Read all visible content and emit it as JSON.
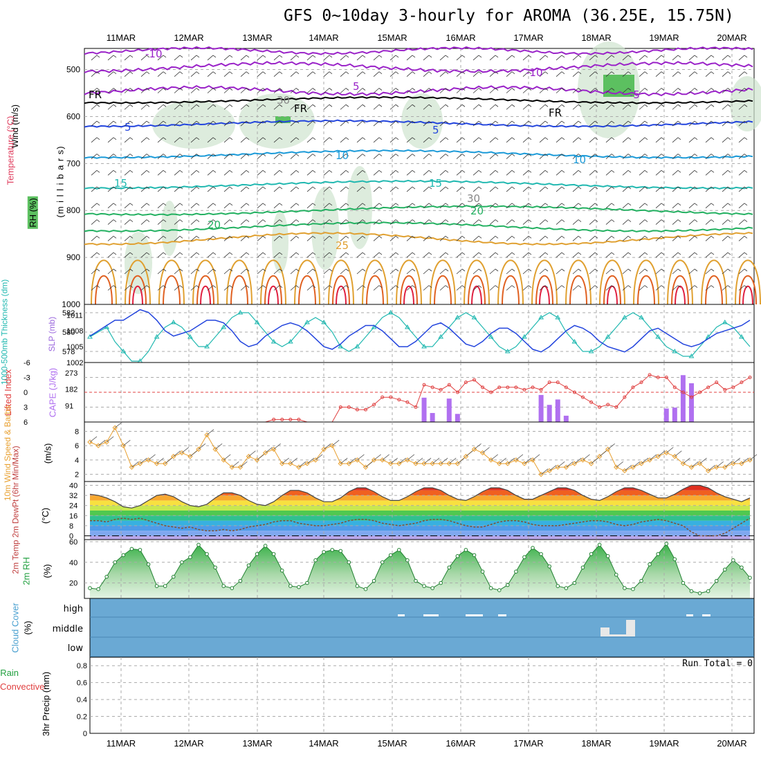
{
  "title": "GFS 0~10day 3-hourly for AROMA (36.25E, 15.75N)",
  "dates": [
    "11MAR",
    "12MAR",
    "13MAR",
    "14MAR",
    "15MAR",
    "16MAR",
    "17MAR",
    "18MAR",
    "19MAR",
    "20MAR"
  ],
  "colors": {
    "grid": "#aaaaaa",
    "purple": "#9a22c8",
    "blue": "#2244dd",
    "lightblue": "#1a9ad8",
    "teal": "#20b8b0",
    "green": "#22b060",
    "orange": "#e0a030",
    "red": "#e02040",
    "cloud_bg": "#6aa9d4",
    "rh_fill": "#5cc060",
    "cape_bar": "#b070f0",
    "li_line": "#e04040",
    "wind_line": "#e8a030",
    "temp_max": "#c02020"
  },
  "panels": {
    "upper_air": {
      "ylabel_wind": "Wind (m/s)",
      "ylabel_temp": "Temperature (°C)",
      "ylabel_rh": "RH (%)",
      "ylabel_units": "(m i l l i b a r s)",
      "yticks": [
        "500",
        "600",
        "700",
        "800",
        "900",
        "1000"
      ],
      "contour_labels": [
        "-10",
        "5",
        "-10",
        "-5",
        "FR",
        "FR",
        "FR",
        "5",
        "5",
        "10",
        "10",
        "15",
        "15",
        "20",
        "20",
        "25",
        "30",
        "30"
      ]
    },
    "slp_thickness": {
      "ylabel_left": "1000-500mb Thickness (dm)",
      "ylabel_right": "SLP (mb)",
      "yticks_left": [
        "582",
        "580",
        "578"
      ],
      "yticks_right": [
        "1011",
        "1008",
        "1005",
        "1002"
      ]
    },
    "li_cape": {
      "ylabel_left": "Lifted Index",
      "ylabel_right": "CAPE (J/kg)",
      "yticks_left": [
        "-6",
        "-3",
        "0",
        "3",
        "6"
      ],
      "yticks_right": [
        "273",
        "182",
        "91"
      ]
    },
    "wind10m": {
      "ylabel": "10m Wind Speed & Barbs",
      "units": "(m/s)",
      "yticks": [
        "8",
        "6",
        "4",
        "2"
      ]
    },
    "temp2m": {
      "ylabel": "2m Temp 2m DewPt (6hr Min/Max)",
      "units": "(°C)",
      "yticks": [
        "40",
        "32",
        "24",
        "16",
        "8",
        "0"
      ]
    },
    "rh2m": {
      "ylabel": "2m RH",
      "units": "(%)",
      "yticks": [
        "60",
        "40",
        "20"
      ]
    },
    "cloud": {
      "ylabel": "Cloud Cover",
      "units": "(%)",
      "levels": [
        "high",
        "middle",
        "low"
      ]
    },
    "precip": {
      "ylabel_total": "Total / Rain",
      "ylabel_conv": "Convective",
      "ylabel": "3hr Precip (mm)",
      "yticks": [
        "0.8",
        "0.6",
        "0.4",
        "0.2",
        "0"
      ],
      "run_total": "Run Total = 0"
    }
  },
  "chart_data": [
    {
      "type": "line",
      "title": "1000-500mb Thickness (dm)",
      "series": [
        {
          "name": "Thickness",
          "values": [
            579.5,
            580,
            580.5,
            579,
            578,
            577,
            577,
            578,
            579.5,
            580.5,
            581,
            580.5,
            579.5,
            578.5,
            578.5,
            579.5,
            580.5,
            581.5,
            582,
            582,
            581,
            580,
            579,
            578.5,
            579,
            580,
            581,
            581.5,
            581,
            580,
            578.5,
            578,
            578.5,
            579.5,
            580.5,
            581.5,
            582,
            581.5,
            580.5,
            579.5,
            578.5,
            578.5,
            579.5,
            580.5,
            581.5,
            582,
            581.5,
            580.5,
            579.5,
            578.5,
            578,
            578.5,
            579.5,
            580.5,
            581.5,
            582,
            581.5,
            580,
            579,
            578,
            578,
            578.5,
            579.5,
            580.5,
            581.5,
            582,
            581.5,
            580.5,
            579.5,
            578.5,
            578,
            577.5,
            577.5,
            578.5,
            579.5,
            580.5,
            581,
            580.5,
            579.5,
            578.5
          ]
        }
      ]
    },
    {
      "type": "line",
      "title": "SLP (mb)",
      "series": [
        {
          "name": "SLP",
          "values": [
            1007,
            1008,
            1009,
            1010,
            1010,
            1011,
            1012,
            1011.5,
            1010,
            1008,
            1007,
            1007.5,
            1008,
            1009,
            1010,
            1010,
            1009.5,
            1008,
            1006,
            1005,
            1005.5,
            1007,
            1008,
            1009,
            1009.5,
            1009,
            1008,
            1006.5,
            1005,
            1004.5,
            1005.5,
            1007,
            1008,
            1009,
            1009,
            1008,
            1006.5,
            1005,
            1005,
            1006,
            1007.5,
            1009,
            1009.5,
            1008.5,
            1007,
            1005.5,
            1005,
            1006,
            1007.5,
            1008.5,
            1008.5,
            1007.5,
            1006,
            1004.5,
            1004,
            1005,
            1006.5,
            1008,
            1009,
            1008.5,
            1007.5,
            1006,
            1005,
            1004.5,
            1004,
            1005,
            1006.5,
            1008,
            1008.5,
            1007.5,
            1006.5,
            1005.5,
            1005,
            1005.5,
            1006.5,
            1007.5,
            1008,
            1008.5,
            1009,
            1010
          ]
        }
      ]
    },
    {
      "type": "bar",
      "title": "CAPE (J/kg)",
      "series": [
        {
          "name": "CAPE",
          "values": [
            0,
            0,
            0,
            0,
            0,
            0,
            0,
            0,
            0,
            0,
            0,
            0,
            0,
            0,
            0,
            0,
            0,
            0,
            0,
            0,
            0,
            0,
            0,
            0,
            0,
            0,
            0,
            0,
            0,
            0,
            0,
            0,
            0,
            0,
            0,
            0,
            0,
            0,
            0,
            0,
            135,
            50,
            0,
            130,
            45,
            0,
            0,
            0,
            0,
            0,
            0,
            0,
            0,
            0,
            150,
            95,
            125,
            35,
            0,
            0,
            0,
            0,
            0,
            0,
            0,
            0,
            0,
            0,
            0,
            75,
            80,
            260,
            215,
            0,
            0,
            0,
            0,
            0,
            0,
            0
          ]
        }
      ]
    },
    {
      "type": "line",
      "title": "Lifted Index",
      "series": [
        {
          "name": "Lifted Index",
          "values": [
            6,
            6,
            6,
            6,
            6,
            6,
            6,
            6,
            6,
            6,
            6,
            6,
            6,
            6,
            6,
            6,
            6,
            6,
            6,
            6,
            6,
            6,
            5.5,
            5.5,
            5.5,
            5.5,
            6,
            6,
            6,
            6,
            3,
            3,
            3.5,
            3.5,
            2.5,
            1,
            1,
            1.5,
            2,
            3,
            -1.5,
            -1,
            -0.5,
            -1.5,
            0,
            -2,
            -2.5,
            -1,
            0,
            -1,
            -1,
            -1,
            -0.5,
            -1,
            -0.5,
            -2,
            -2,
            -1,
            0,
            1,
            2,
            3,
            2.5,
            3,
            1,
            -1,
            -2,
            -3.5,
            -3,
            -3,
            -1,
            0,
            1,
            0,
            -1,
            -2,
            -0.5,
            -1,
            -2,
            -3
          ]
        }
      ]
    },
    {
      "type": "line",
      "title": "10m Wind Speed (m/s)",
      "series": [
        {
          "name": "Wind Speed",
          "values": [
            6.5,
            6,
            6.5,
            8.5,
            6,
            3,
            3.5,
            4,
            3.5,
            3.5,
            4.5,
            5,
            4.5,
            5.5,
            7.5,
            5.5,
            4,
            3,
            3,
            4.5,
            4,
            5,
            5.5,
            3.5,
            3.5,
            3,
            3.5,
            4,
            5.5,
            6,
            3.5,
            3.5,
            4,
            3,
            4,
            4,
            3.5,
            3.5,
            4,
            3.5,
            3.5,
            3.5,
            3.5,
            3.5,
            3.5,
            4.5,
            5.5,
            5,
            4,
            3.5,
            3.5,
            4,
            3.5,
            4,
            2,
            2.5,
            3,
            3,
            3.5,
            4,
            3.5,
            4.5,
            5.5,
            3,
            2.5,
            3,
            3.5,
            4,
            4.5,
            5,
            4.5,
            3.5,
            3,
            3.5,
            2.5,
            3,
            3,
            3.5,
            3.5,
            4
          ]
        }
      ]
    },
    {
      "type": "area",
      "title": "2m Temp (°C)",
      "series": [
        {
          "name": "2m Temp",
          "values": [
            33,
            32,
            30,
            27,
            23,
            22,
            24,
            28,
            32,
            33,
            31,
            27,
            24,
            23,
            25,
            30,
            34,
            34,
            32,
            28,
            25,
            24,
            27,
            32,
            36,
            36,
            34,
            30,
            27,
            27,
            30,
            35,
            38,
            38,
            35,
            31,
            28,
            28,
            31,
            35,
            38,
            38,
            36,
            32,
            29,
            28,
            31,
            35,
            38,
            38,
            36,
            32,
            29,
            29,
            32,
            35,
            38,
            38,
            36,
            32,
            29,
            28,
            31,
            35,
            38,
            38,
            36,
            33,
            30,
            30,
            33,
            37,
            40,
            40,
            38,
            34,
            31,
            29,
            27,
            30
          ]
        },
        {
          "name": "2m DewPt",
          "values": [
            12,
            12,
            11,
            13,
            14,
            13,
            14,
            12,
            10,
            8,
            7,
            6,
            7,
            5,
            4,
            4,
            5,
            4,
            5,
            7,
            8,
            9,
            11,
            12,
            12,
            10,
            9,
            8,
            8,
            9,
            10,
            12,
            13,
            13,
            12,
            10,
            9,
            8,
            9,
            10,
            12,
            13,
            13,
            12,
            10,
            8,
            7,
            7,
            9,
            11,
            12,
            12,
            11,
            9,
            8,
            8,
            8,
            9,
            10,
            11,
            12,
            12,
            11,
            9,
            8,
            9,
            11,
            12,
            13,
            12,
            10,
            8,
            3,
            0,
            0,
            0,
            2,
            6,
            10,
            14
          ]
        }
      ]
    },
    {
      "type": "area",
      "title": "2m RH (%)",
      "series": [
        {
          "name": "2m RH",
          "values": [
            15,
            14,
            26,
            40,
            47,
            53,
            52,
            38,
            17,
            17,
            26,
            40,
            45,
            57,
            48,
            35,
            17,
            15,
            22,
            37,
            48,
            56,
            48,
            32,
            17,
            16,
            20,
            42,
            50,
            52,
            51,
            40,
            17,
            14,
            22,
            40,
            47,
            52,
            42,
            22,
            17,
            15,
            20,
            35,
            46,
            52,
            47,
            31,
            15,
            13,
            18,
            31,
            45,
            54,
            48,
            36,
            17,
            15,
            20,
            35,
            48,
            57,
            46,
            28,
            15,
            14,
            22,
            38,
            48,
            58,
            43,
            20,
            12,
            10,
            12,
            22,
            33,
            42,
            35,
            25
          ]
        }
      ]
    },
    {
      "type": "bar",
      "title": "3hr Precip (mm)",
      "series": [
        {
          "name": "Total / Rain",
          "values": [
            0,
            0,
            0,
            0,
            0,
            0,
            0,
            0,
            0,
            0,
            0,
            0,
            0,
            0,
            0,
            0,
            0,
            0,
            0,
            0,
            0,
            0,
            0,
            0,
            0,
            0,
            0,
            0,
            0,
            0,
            0,
            0,
            0,
            0,
            0,
            0,
            0,
            0,
            0,
            0,
            0,
            0,
            0,
            0,
            0,
            0,
            0,
            0,
            0,
            0,
            0,
            0,
            0,
            0,
            0,
            0,
            0,
            0,
            0,
            0,
            0,
            0,
            0,
            0,
            0,
            0,
            0,
            0,
            0,
            0,
            0,
            0,
            0,
            0,
            0,
            0,
            0,
            0,
            0,
            0
          ]
        }
      ],
      "ylim": [
        0,
        0.9
      ]
    }
  ]
}
